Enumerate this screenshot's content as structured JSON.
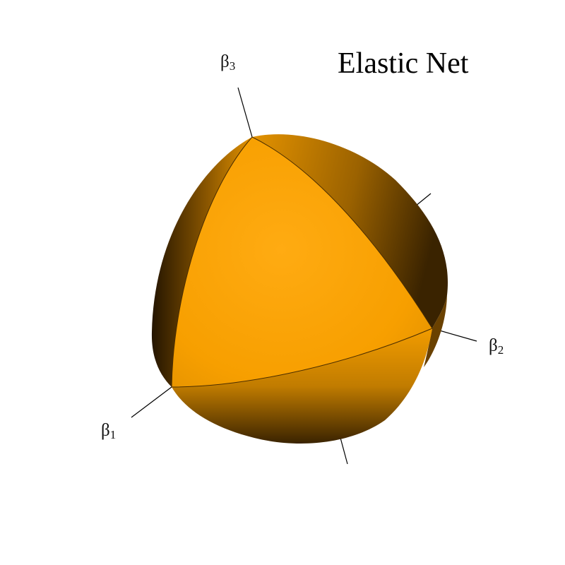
{
  "title": "Elastic Net",
  "axes": [
    {
      "symbol": "β",
      "index": "1"
    },
    {
      "symbol": "β",
      "index": "2"
    },
    {
      "symbol": "β",
      "index": "3"
    }
  ],
  "colors": {
    "body": "#f5a000",
    "body_light": "#ffab1a",
    "body_shadow": "#3d2400",
    "axis_line": "#000000"
  }
}
